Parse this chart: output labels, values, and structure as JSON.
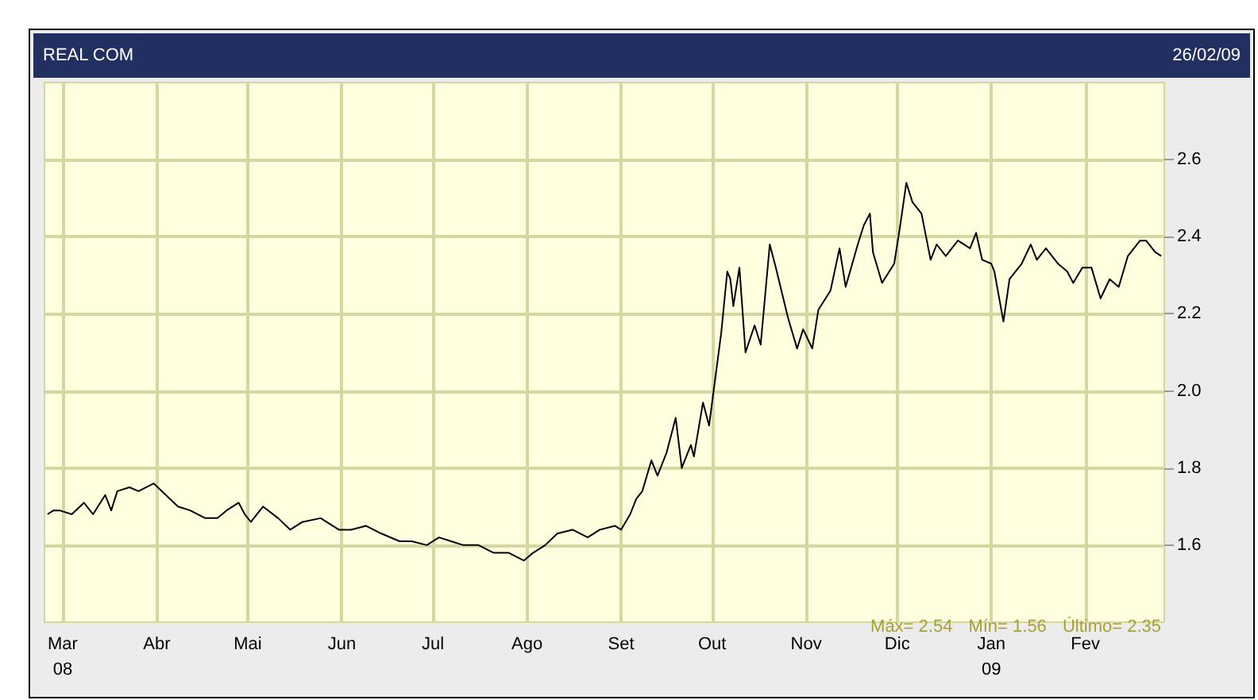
{
  "chart_data": {
    "type": "line",
    "title": "REAL COM",
    "subtitle": "26/02/09",
    "annotations": [
      "Máx= 2.54",
      "Mín= 1.56",
      "Último= 2.35"
    ],
    "x": [
      "2008-02-25",
      "2008-02-27",
      "2008-02-29",
      "2008-03-04",
      "2008-03-08",
      "2008-03-11",
      "2008-03-15",
      "2008-03-17",
      "2008-03-19",
      "2008-03-23",
      "2008-03-26",
      "2008-03-31",
      "2008-04-04",
      "2008-04-08",
      "2008-04-12",
      "2008-04-17",
      "2008-04-21",
      "2008-04-24",
      "2008-04-28",
      "2008-04-30",
      "2008-05-02",
      "2008-05-06",
      "2008-05-11",
      "2008-05-15",
      "2008-05-19",
      "2008-05-25",
      "2008-05-31",
      "2008-06-04",
      "2008-06-09",
      "2008-06-14",
      "2008-06-20",
      "2008-06-24",
      "2008-06-29",
      "2008-07-03",
      "2008-07-07",
      "2008-07-11",
      "2008-07-16",
      "2008-07-21",
      "2008-07-26",
      "2008-07-31",
      "2008-08-03",
      "2008-08-07",
      "2008-08-11",
      "2008-08-16",
      "2008-08-21",
      "2008-08-25",
      "2008-08-30",
      "2008-09-01",
      "2008-09-04",
      "2008-09-06",
      "2008-09-08",
      "2008-09-11",
      "2008-09-13",
      "2008-09-16",
      "2008-09-19",
      "2008-09-21",
      "2008-09-24",
      "2008-09-25",
      "2008-09-28",
      "2008-09-30",
      "2008-10-02",
      "2008-10-04",
      "2008-10-06",
      "2008-10-07",
      "2008-10-08",
      "2008-10-10",
      "2008-10-12",
      "2008-10-15",
      "2008-10-17",
      "2008-10-20",
      "2008-10-22",
      "2008-10-26",
      "2008-10-29",
      "2008-10-31",
      "2008-11-03",
      "2008-11-05",
      "2008-11-09",
      "2008-11-12",
      "2008-11-14",
      "2008-11-18",
      "2008-11-20",
      "2008-11-22",
      "2008-11-23",
      "2008-11-26",
      "2008-11-30",
      "2008-12-02",
      "2008-12-04",
      "2008-12-06",
      "2008-12-09",
      "2008-12-12",
      "2008-12-14",
      "2008-12-17",
      "2008-12-21",
      "2008-12-25",
      "2008-12-27",
      "2008-12-29",
      "2009-01-01",
      "2009-01-02",
      "2009-01-05",
      "2009-01-07",
      "2009-01-11",
      "2009-01-14",
      "2009-01-16",
      "2009-01-19",
      "2009-01-23",
      "2009-01-26",
      "2009-01-28",
      "2009-01-31",
      "2009-02-03",
      "2009-02-06",
      "2009-02-09",
      "2009-02-12",
      "2009-02-15",
      "2009-02-19",
      "2009-02-21",
      "2009-02-24",
      "2009-02-26"
    ],
    "series": [
      {
        "color": "#000000",
        "values": [
          1.68,
          1.69,
          1.69,
          1.68,
          1.71,
          1.68,
          1.73,
          1.69,
          1.74,
          1.75,
          1.74,
          1.76,
          1.73,
          1.7,
          1.69,
          1.67,
          1.67,
          1.69,
          1.71,
          1.68,
          1.66,
          1.7,
          1.67,
          1.64,
          1.66,
          1.67,
          1.64,
          1.64,
          1.65,
          1.63,
          1.61,
          1.61,
          1.6,
          1.62,
          1.61,
          1.6,
          1.6,
          1.58,
          1.58,
          1.56,
          1.58,
          1.6,
          1.63,
          1.64,
          1.62,
          1.64,
          1.65,
          1.64,
          1.68,
          1.72,
          1.74,
          1.82,
          1.78,
          1.84,
          1.93,
          1.8,
          1.86,
          1.83,
          1.97,
          1.91,
          2.03,
          2.15,
          2.31,
          2.29,
          2.22,
          2.32,
          2.1,
          2.17,
          2.12,
          2.38,
          2.32,
          2.19,
          2.11,
          2.16,
          2.11,
          2.21,
          2.26,
          2.37,
          2.27,
          2.38,
          2.43,
          2.46,
          2.36,
          2.28,
          2.33,
          2.43,
          2.54,
          2.49,
          2.46,
          2.34,
          2.38,
          2.35,
          2.39,
          2.37,
          2.41,
          2.34,
          2.33,
          2.31,
          2.18,
          2.29,
          2.33,
          2.38,
          2.34,
          2.37,
          2.33,
          2.31,
          2.28,
          2.32,
          2.32,
          2.24,
          2.29,
          2.27,
          2.35,
          2.39,
          2.39,
          2.36,
          2.35
        ]
      }
    ],
    "xlim": [
      "2008-02-24",
      "2009-02-27"
    ],
    "xticks": [
      {
        "value": "2008-03-01",
        "label": "Mar\n08"
      },
      {
        "value": "2008-04-01",
        "label": "Abr"
      },
      {
        "value": "2008-05-01",
        "label": "Mai"
      },
      {
        "value": "2008-06-01",
        "label": "Jun"
      },
      {
        "value": "2008-07-01",
        "label": "Jul"
      },
      {
        "value": "2008-08-01",
        "label": "Ago"
      },
      {
        "value": "2008-09-01",
        "label": "Set"
      },
      {
        "value": "2008-10-01",
        "label": "Out"
      },
      {
        "value": "2008-11-01",
        "label": "Nov"
      },
      {
        "value": "2008-12-01",
        "label": "Dic"
      },
      {
        "value": "2009-01-01",
        "label": "Jan\n09"
      },
      {
        "value": "2009-02-01",
        "label": "Fev"
      }
    ],
    "ylim": [
      1.4,
      2.8
    ],
    "yticks": [
      1.6,
      1.8,
      {
        "value": 2.0,
        "label": "2.0"
      },
      2.2,
      2.4,
      2.6
    ],
    "grid": true,
    "marker": "none",
    "line_style": "solid"
  }
}
